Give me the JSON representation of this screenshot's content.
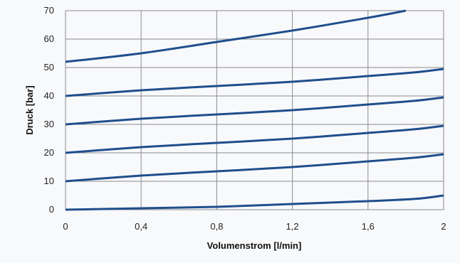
{
  "chart_data": {
    "type": "line",
    "xlabel": "Volumenstrom [l/min]",
    "ylabel": "Druck [bar]",
    "xlim": [
      0,
      2
    ],
    "ylim": [
      0,
      70
    ],
    "xticks": [
      0,
      0.4,
      0.8,
      1.2,
      1.6,
      2
    ],
    "xtick_labels": [
      "0",
      "0,4",
      "0,8",
      "1,2",
      "1,6",
      "2"
    ],
    "yticks": [
      0,
      10,
      20,
      30,
      40,
      50,
      60,
      70
    ],
    "ytick_labels": [
      "0",
      "10",
      "20",
      "30",
      "40",
      "50",
      "60",
      "70"
    ],
    "grid": true,
    "legend": "none",
    "line_color": "#1f4e8c",
    "series": [
      {
        "x": [
          0,
          0.4,
          0.8,
          1.2,
          1.6,
          1.85,
          2.0
        ],
        "values": [
          0,
          0.5,
          1,
          2,
          3,
          3.8,
          5
        ]
      },
      {
        "x": [
          0,
          0.4,
          0.8,
          1.2,
          1.6,
          1.85,
          2.0
        ],
        "values": [
          10,
          12,
          13.5,
          15,
          17,
          18.3,
          19.5
        ]
      },
      {
        "x": [
          0,
          0.4,
          0.8,
          1.2,
          1.6,
          1.85,
          2.0
        ],
        "values": [
          20,
          22,
          23.5,
          25,
          27,
          28.3,
          29.5
        ]
      },
      {
        "x": [
          0,
          0.4,
          0.8,
          1.2,
          1.6,
          1.85,
          2.0
        ],
        "values": [
          30,
          32,
          33.5,
          35,
          37,
          38.3,
          39.5
        ]
      },
      {
        "x": [
          0,
          0.4,
          0.8,
          1.2,
          1.6,
          1.85,
          2.0
        ],
        "values": [
          40,
          42,
          43.5,
          45,
          47,
          48.3,
          49.5
        ]
      },
      {
        "x": [
          0,
          0.4,
          0.8,
          1.2,
          1.6,
          1.8
        ],
        "values": [
          52,
          55,
          59,
          63,
          67.5,
          70
        ]
      }
    ]
  }
}
